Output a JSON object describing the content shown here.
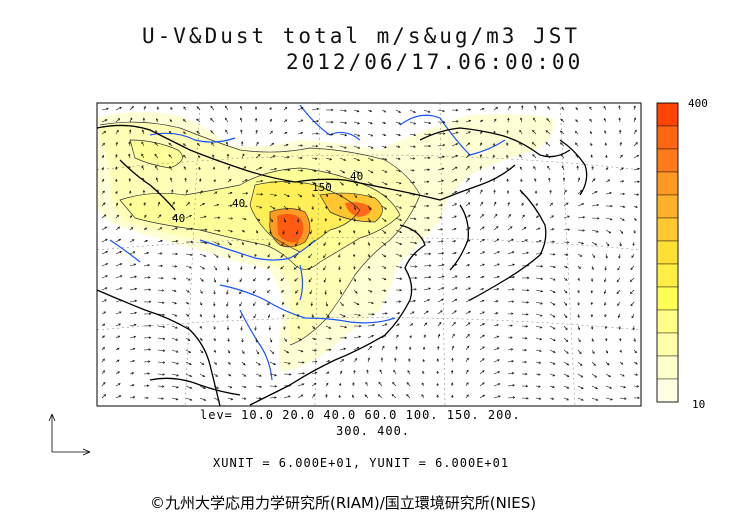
{
  "title_line1": "U-V&Dust total m/s&ug/m3 JST",
  "title_line2": "2012/06/17.06:00:00",
  "levels_line1": "lev= 10.0 20.0 40.0 60.0 100. 150. 200.",
  "levels_line2": "300. 400.",
  "units_line": "XUNIT = 6.000E+01, YUNIT = 6.000E+01",
  "colorbar": {
    "max_label": "400",
    "min_label": "10",
    "colors": [
      "#ff4400",
      "#ff6611",
      "#ff7a1a",
      "#ff9922",
      "#ffb229",
      "#ffc82e",
      "#ffdf33",
      "#ffee44",
      "#ffff55",
      "#ffff88",
      "#ffffaa",
      "#ffffcc",
      "#ffffe6"
    ]
  },
  "contour_labels": [
    "150",
    "40",
    "40",
    "40"
  ],
  "copyright": "©九州大学応用力学研究所(RIAM)/国立環境研究所(NIES)"
}
